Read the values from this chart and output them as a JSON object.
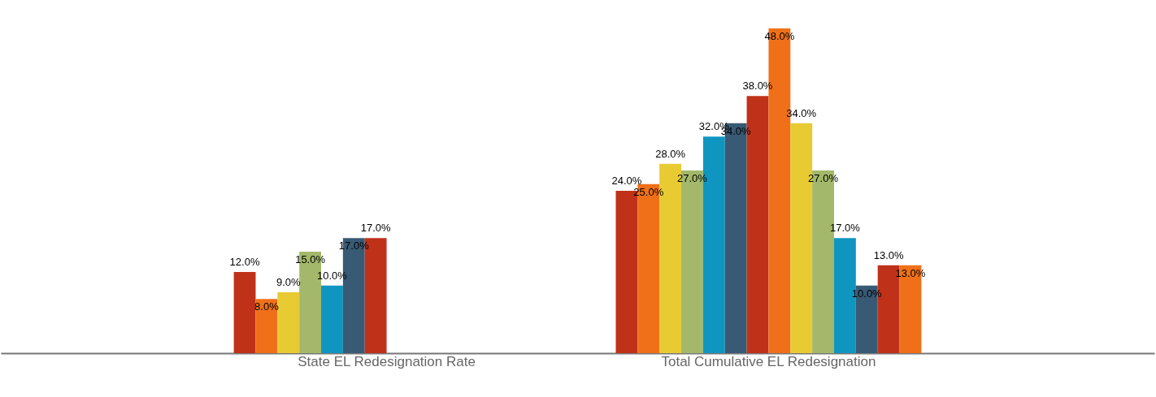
{
  "chart_data": {
    "type": "bar",
    "categories": [
      "State EL Redesignation Rate",
      "Total Cumulative EL Redesignation"
    ],
    "series": [
      {
        "color": "#c0311a",
        "values": [
          12,
          24
        ],
        "value_labels": [
          "12.0%",
          "24.0%"
        ]
      },
      {
        "color": "#f07019",
        "values": [
          8,
          25
        ],
        "value_labels": [
          "8.0%",
          "25.0%"
        ]
      },
      {
        "color": "#e8ca33",
        "values": [
          9,
          28
        ],
        "value_labels": [
          "9.0%",
          "28.0%"
        ]
      },
      {
        "color": "#a3b86a",
        "values": [
          15,
          27
        ],
        "value_labels": [
          "15.0%",
          "27.0%"
        ]
      },
      {
        "color": "#0f96c0",
        "values": [
          10,
          32
        ],
        "value_labels": [
          "10.0%",
          "32.0%"
        ]
      },
      {
        "color": "#385a74",
        "values": [
          17,
          34
        ],
        "value_labels": [
          "17.0%",
          "34.0%"
        ]
      },
      {
        "color": "#c0311a",
        "values": [
          17,
          38
        ],
        "value_labels": [
          "17.0%",
          "38.0%"
        ]
      },
      {
        "color": "#f07019",
        "values": [
          null,
          48
        ],
        "value_labels": [
          null,
          "48.0%"
        ]
      },
      {
        "color": "#e8ca33",
        "values": [
          null,
          34
        ],
        "value_labels": [
          null,
          "34.0%"
        ]
      },
      {
        "color": "#a3b86a",
        "values": [
          null,
          27
        ],
        "value_labels": [
          null,
          "27.0%"
        ]
      },
      {
        "color": "#0f96c0",
        "values": [
          null,
          17
        ],
        "value_labels": [
          null,
          "17.0%"
        ]
      },
      {
        "color": "#385a74",
        "values": [
          null,
          10
        ],
        "value_labels": [
          null,
          "10.0%"
        ]
      },
      {
        "color": "#c0311a",
        "values": [
          null,
          13
        ],
        "value_labels": [
          null,
          "13.0%"
        ]
      },
      {
        "color": "#f07019",
        "values": [
          null,
          13
        ],
        "value_labels": [
          null,
          "13.0%"
        ]
      }
    ]
  }
}
